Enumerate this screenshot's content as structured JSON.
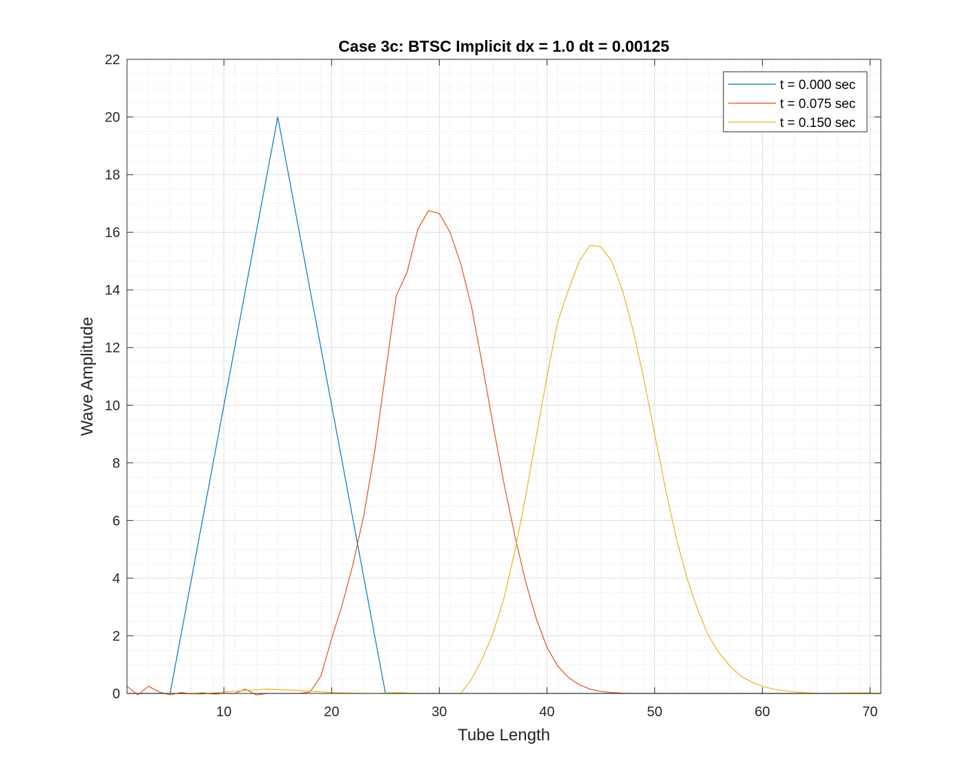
{
  "chart_data": {
    "type": "line",
    "title": "Case 3c: BTSC Implicit dx = 1.0 dt = 0.00125",
    "xlabel": "Tube Length",
    "ylabel": "Wave Amplitude",
    "xlim": [
      1,
      71
    ],
    "ylim": [
      0,
      22
    ],
    "xticks": [
      10,
      20,
      30,
      40,
      50,
      60,
      70
    ],
    "yticks": [
      0,
      2,
      4,
      6,
      8,
      10,
      12,
      14,
      16,
      18,
      20,
      22
    ],
    "grid": "on (major and minor)",
    "legend_position": "top-right",
    "series": [
      {
        "name": "t = 0.000 sec",
        "color": "#0072BD",
        "x": [
          1,
          2,
          3,
          4,
          5,
          6,
          7,
          8,
          9,
          10,
          11,
          12,
          13,
          14,
          15,
          16,
          17,
          18,
          19,
          20,
          21,
          22,
          23,
          24,
          25,
          26,
          30,
          35,
          40,
          45,
          50,
          55,
          60,
          65,
          70,
          71
        ],
        "y": [
          0,
          0,
          0,
          0,
          0,
          2,
          4,
          6,
          8,
          10,
          12,
          14,
          16,
          18,
          20,
          18,
          16,
          14,
          12,
          10,
          8,
          6,
          4,
          2,
          0,
          0,
          0,
          0,
          0,
          0,
          0,
          0,
          0,
          0,
          0,
          0
        ]
      },
      {
        "name": "t = 0.075 sec",
        "color": "#D95319",
        "x": [
          1,
          2,
          3,
          4,
          5,
          6,
          7,
          8,
          9,
          10,
          11,
          12,
          13,
          14,
          15,
          16,
          17,
          18,
          19,
          20,
          21,
          22,
          23,
          24,
          25,
          26,
          27,
          28,
          29,
          30,
          31,
          32,
          33,
          34,
          35,
          36,
          37,
          38,
          39,
          40,
          41,
          42,
          43,
          44,
          45,
          46,
          47,
          48,
          50,
          55,
          60,
          65,
          70,
          71
        ],
        "y": [
          0.25,
          -0.1,
          0.25,
          0.05,
          -0.05,
          0.03,
          -0.02,
          0.02,
          -0.02,
          0.0,
          0.0,
          0.15,
          -0.05,
          0.0,
          0.0,
          0.0,
          0.0,
          0.05,
          0.6,
          1.9,
          3.1,
          4.5,
          6.2,
          8.4,
          11.1,
          13.8,
          14.6,
          16.1,
          16.75,
          16.65,
          16.0,
          14.9,
          13.4,
          11.4,
          9.3,
          7.3,
          5.5,
          3.9,
          2.6,
          1.6,
          0.95,
          0.55,
          0.3,
          0.15,
          0.07,
          0.03,
          0.01,
          0.0,
          0.0,
          0.0,
          0.0,
          0.0,
          0.0,
          0.0
        ]
      },
      {
        "name": "t = 0.150 sec",
        "color": "#EDB120",
        "x": [
          1,
          3,
          5,
          8,
          10,
          12,
          14,
          16,
          18,
          20,
          22,
          24,
          26,
          28,
          30,
          32,
          33,
          34,
          35,
          36,
          37,
          38,
          39,
          40,
          41,
          42,
          43,
          44,
          45,
          46,
          47,
          48,
          49,
          50,
          51,
          52,
          53,
          54,
          55,
          56,
          57,
          58,
          59,
          60,
          61,
          62,
          63,
          64,
          65,
          66,
          67,
          68,
          69,
          70,
          71
        ],
        "y": [
          0.0,
          0.0,
          0.0,
          -0.02,
          0.05,
          0.1,
          0.15,
          0.12,
          0.08,
          0.03,
          0.01,
          0.0,
          0.03,
          0.0,
          0.0,
          0.0,
          0.5,
          1.2,
          2.1,
          3.3,
          4.9,
          6.8,
          8.9,
          11.0,
          12.9,
          14.0,
          15.0,
          15.55,
          15.5,
          15.0,
          14.0,
          12.6,
          10.9,
          9.0,
          7.1,
          5.4,
          4.0,
          2.9,
          2.0,
          1.4,
          0.95,
          0.6,
          0.4,
          0.25,
          0.15,
          0.1,
          0.05,
          0.03,
          0.0,
          0.0,
          0.01,
          0.02,
          0.02,
          0.02,
          0.0
        ]
      }
    ]
  }
}
